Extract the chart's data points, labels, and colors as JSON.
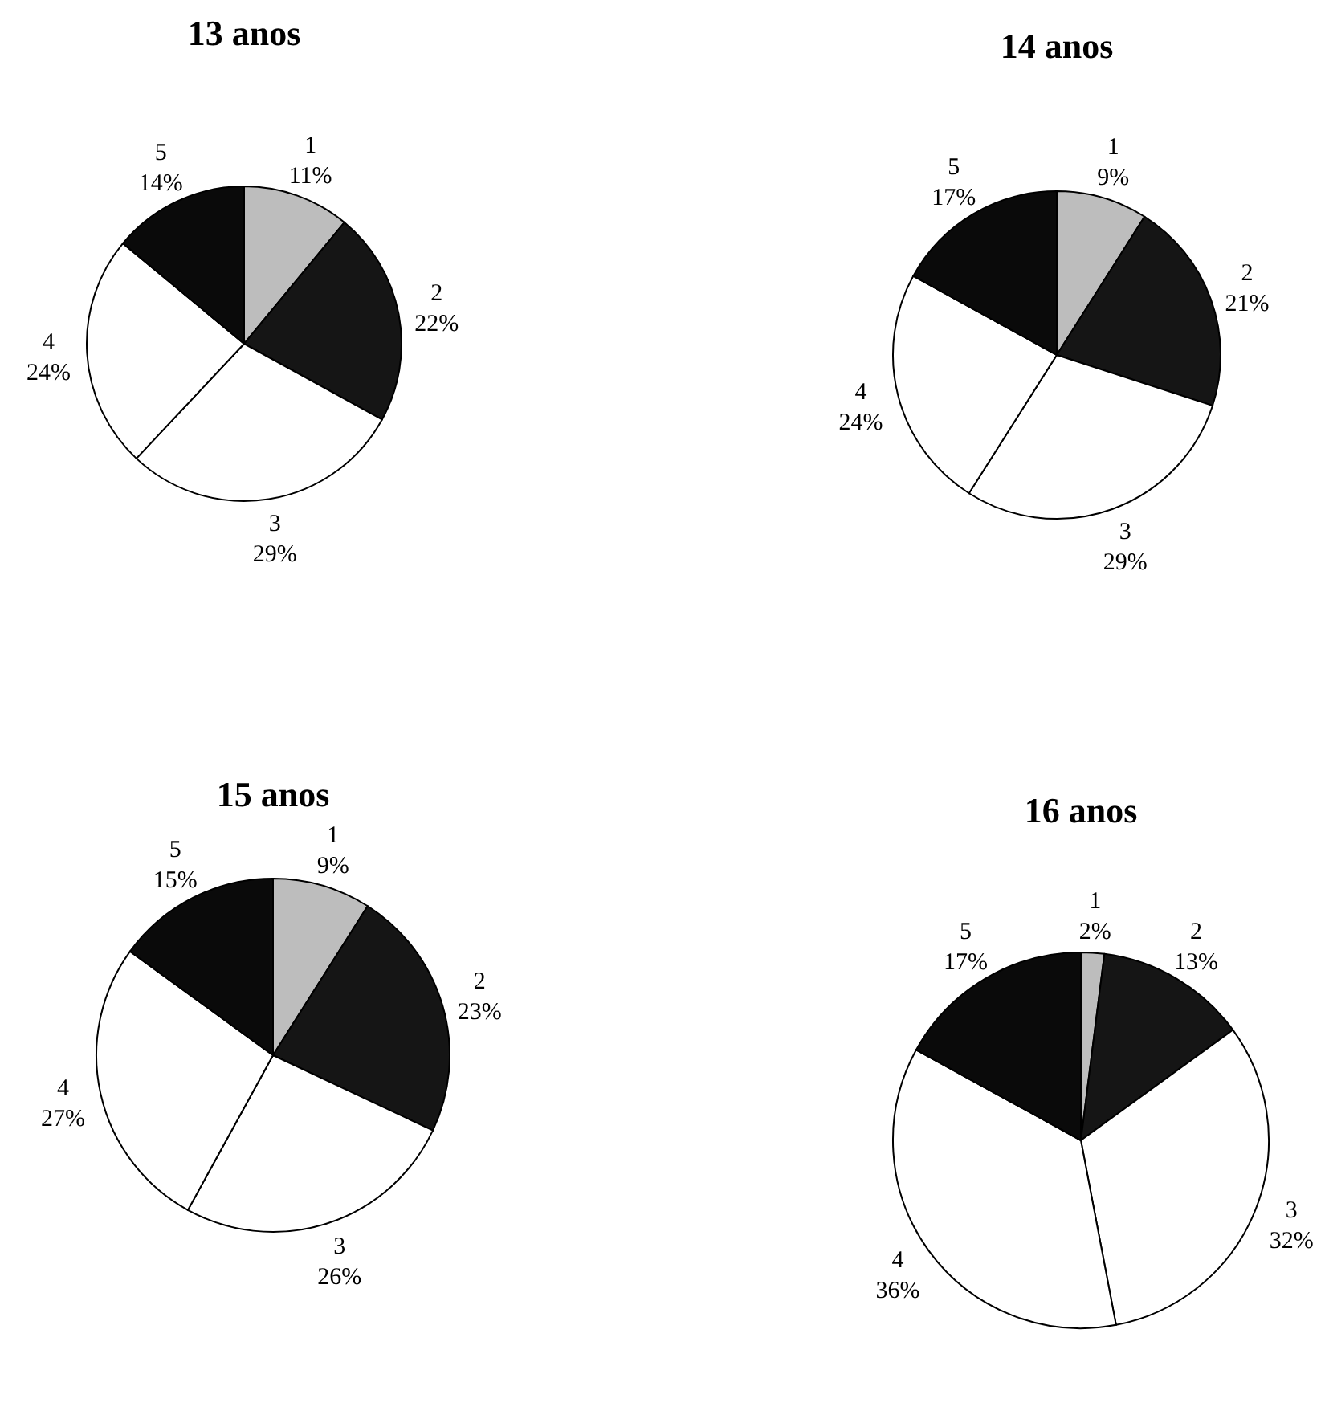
{
  "chart_data": [
    {
      "type": "pie",
      "title": "13 anos",
      "categories": [
        "1",
        "2",
        "3",
        "4",
        "5"
      ],
      "values": [
        11,
        22,
        29,
        24,
        14
      ],
      "value_labels": [
        "11%",
        "22%",
        "29%",
        "24%",
        "14%"
      ],
      "colors": [
        "#bdbdbd",
        "#151515",
        "#ffffff",
        "#ffffff",
        "#0a0a0a"
      ]
    },
    {
      "type": "pie",
      "title": "14 anos",
      "categories": [
        "1",
        "2",
        "3",
        "4",
        "5"
      ],
      "values": [
        9,
        21,
        29,
        24,
        17
      ],
      "value_labels": [
        "9%",
        "21%",
        "29%",
        "24%",
        "17%"
      ],
      "colors": [
        "#bdbdbd",
        "#151515",
        "#ffffff",
        "#ffffff",
        "#0a0a0a"
      ]
    },
    {
      "type": "pie",
      "title": "15 anos",
      "categories": [
        "1",
        "2",
        "3",
        "4",
        "5"
      ],
      "values": [
        9,
        23,
        26,
        27,
        15
      ],
      "value_labels": [
        "9%",
        "23%",
        "26%",
        "27%",
        "15%"
      ],
      "colors": [
        "#bdbdbd",
        "#151515",
        "#ffffff",
        "#ffffff",
        "#0a0a0a"
      ]
    },
    {
      "type": "pie",
      "title": "16 anos",
      "categories": [
        "1",
        "2",
        "3",
        "4",
        "5"
      ],
      "values": [
        2,
        13,
        32,
        36,
        17
      ],
      "value_labels": [
        "2%",
        "13%",
        "32%",
        "36%",
        "17%"
      ],
      "colors": [
        "#bdbdbd",
        "#151515",
        "#ffffff",
        "#ffffff",
        "#0a0a0a"
      ]
    }
  ]
}
